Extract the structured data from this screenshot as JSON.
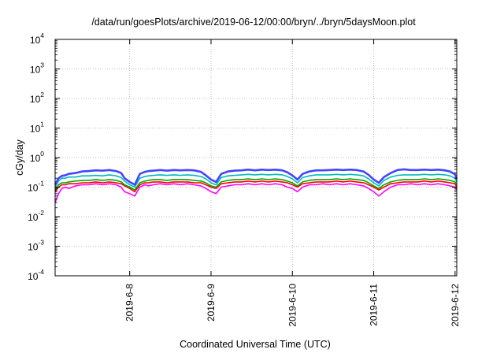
{
  "chart_data": {
    "type": "line",
    "title": "/data/run/goesPlots/archive/2019-06-12/00:00/bryn/../bryn/5daysMoon.plot",
    "xlabel": "Coordinated Universal Time (UTC)",
    "ylabel": "cGy/day",
    "yscale": "log",
    "ylim": [
      0.0001,
      10000
    ],
    "xlim": [
      "2019-06-07T02:00",
      "2019-06-12T00:30"
    ],
    "grid": true,
    "legend": "none",
    "y_ticks": [
      {
        "base": "10",
        "exp": "-4"
      },
      {
        "base": "10",
        "exp": "-3"
      },
      {
        "base": "10",
        "exp": "-2"
      },
      {
        "base": "10",
        "exp": "-1"
      },
      {
        "base": "10",
        "exp": "0"
      },
      {
        "base": "10",
        "exp": "1"
      },
      {
        "base": "10",
        "exp": "2"
      },
      {
        "base": "10",
        "exp": "3"
      },
      {
        "base": "10",
        "exp": "4"
      }
    ],
    "x_ticks": [
      {
        "label": "2019-6-8",
        "value": "2019-06-08T00:00"
      },
      {
        "label": "2019-6-9",
        "value": "2019-06-09T00:00"
      },
      {
        "label": "2019-6-10",
        "value": "2019-06-10T00:00"
      },
      {
        "label": "2019-6-11",
        "value": "2019-06-11T00:00"
      },
      {
        "label": "2019-6-12",
        "value": "2019-06-12T00:00"
      }
    ],
    "x": [
      "2019-06-07T02:00",
      "2019-06-07T03:00",
      "2019-06-07T04:00",
      "2019-06-07T05:00",
      "2019-06-07T06:00",
      "2019-06-07T08:00",
      "2019-06-07T10:00",
      "2019-06-07T12:00",
      "2019-06-07T14:00",
      "2019-06-07T16:00",
      "2019-06-07T18:00",
      "2019-06-07T20:00",
      "2019-06-07T21:30",
      "2019-06-07T22:30",
      "2019-06-08T00:00",
      "2019-06-08T01:30",
      "2019-06-08T03:00",
      "2019-06-08T04:30",
      "2019-06-08T05:30",
      "2019-06-08T07:00",
      "2019-06-08T09:00",
      "2019-06-08T11:00",
      "2019-06-08T13:00",
      "2019-06-08T15:00",
      "2019-06-08T17:00",
      "2019-06-08T19:00",
      "2019-06-08T21:00",
      "2019-06-08T22:30",
      "2019-06-09T00:00",
      "2019-06-09T01:30",
      "2019-06-09T03:00",
      "2019-06-09T05:00",
      "2019-06-09T07:00",
      "2019-06-09T09:00",
      "2019-06-09T11:00",
      "2019-06-09T13:00",
      "2019-06-09T15:00",
      "2019-06-09T17:00",
      "2019-06-09T19:00",
      "2019-06-09T21:00",
      "2019-06-09T22:30",
      "2019-06-10T00:00",
      "2019-06-10T01:30",
      "2019-06-10T03:00",
      "2019-06-10T05:00",
      "2019-06-10T07:00",
      "2019-06-10T09:00",
      "2019-06-10T11:00",
      "2019-06-10T13:00",
      "2019-06-10T15:00",
      "2019-06-10T17:00",
      "2019-06-10T19:00",
      "2019-06-10T21:00",
      "2019-06-10T22:30",
      "2019-06-11T00:00",
      "2019-06-11T01:30",
      "2019-06-11T03:00",
      "2019-06-11T05:00",
      "2019-06-11T07:00",
      "2019-06-11T09:00",
      "2019-06-11T11:00",
      "2019-06-11T13:00",
      "2019-06-11T15:00",
      "2019-06-11T17:00",
      "2019-06-11T19:00",
      "2019-06-11T21:00",
      "2019-06-11T22:30",
      "2019-06-12T00:00",
      "2019-06-12T00:30"
    ],
    "series": [
      {
        "color": "#ff00ff",
        "values": [
          0.03,
          0.06,
          0.09,
          0.1,
          0.09,
          0.11,
          0.12,
          0.12,
          0.13,
          0.12,
          0.13,
          0.12,
          0.1,
          0.07,
          0.06,
          0.05,
          0.1,
          0.12,
          0.11,
          0.12,
          0.13,
          0.12,
          0.13,
          0.12,
          0.13,
          0.12,
          0.11,
          0.09,
          0.07,
          0.06,
          0.1,
          0.11,
          0.12,
          0.12,
          0.13,
          0.12,
          0.13,
          0.12,
          0.13,
          0.12,
          0.1,
          0.09,
          0.07,
          0.1,
          0.12,
          0.12,
          0.13,
          0.12,
          0.13,
          0.12,
          0.13,
          0.12,
          0.11,
          0.09,
          0.07,
          0.05,
          0.07,
          0.1,
          0.12,
          0.12,
          0.13,
          0.12,
          0.13,
          0.12,
          0.13,
          0.12,
          0.11,
          0.1,
          0.08
        ]
      },
      {
        "color": "#ff0000",
        "values": [
          0.07,
          0.1,
          0.12,
          0.12,
          0.13,
          0.13,
          0.14,
          0.14,
          0.15,
          0.14,
          0.15,
          0.14,
          0.13,
          0.11,
          0.09,
          0.07,
          0.12,
          0.14,
          0.14,
          0.15,
          0.15,
          0.14,
          0.15,
          0.15,
          0.15,
          0.14,
          0.14,
          0.12,
          0.1,
          0.09,
          0.13,
          0.14,
          0.15,
          0.15,
          0.16,
          0.15,
          0.16,
          0.15,
          0.16,
          0.15,
          0.14,
          0.12,
          0.1,
          0.13,
          0.14,
          0.15,
          0.15,
          0.15,
          0.16,
          0.15,
          0.16,
          0.15,
          0.14,
          0.12,
          0.1,
          0.08,
          0.1,
          0.13,
          0.14,
          0.15,
          0.15,
          0.15,
          0.16,
          0.15,
          0.16,
          0.15,
          0.14,
          0.13,
          0.1
        ]
      },
      {
        "color": "#00aa00",
        "values": [
          0.08,
          0.12,
          0.14,
          0.14,
          0.15,
          0.16,
          0.17,
          0.17,
          0.18,
          0.17,
          0.18,
          0.17,
          0.15,
          0.12,
          0.1,
          0.08,
          0.14,
          0.16,
          0.17,
          0.18,
          0.18,
          0.17,
          0.18,
          0.18,
          0.18,
          0.17,
          0.16,
          0.14,
          0.11,
          0.1,
          0.15,
          0.17,
          0.18,
          0.18,
          0.19,
          0.18,
          0.19,
          0.18,
          0.19,
          0.18,
          0.16,
          0.14,
          0.11,
          0.15,
          0.17,
          0.18,
          0.18,
          0.18,
          0.19,
          0.18,
          0.19,
          0.18,
          0.17,
          0.14,
          0.11,
          0.09,
          0.12,
          0.15,
          0.17,
          0.18,
          0.18,
          0.18,
          0.19,
          0.18,
          0.19,
          0.18,
          0.17,
          0.15,
          0.12
        ]
      },
      {
        "color": "#00bbbb",
        "values": [
          0.1,
          0.16,
          0.2,
          0.2,
          0.22,
          0.22,
          0.24,
          0.24,
          0.25,
          0.24,
          0.26,
          0.24,
          0.21,
          0.16,
          0.12,
          0.1,
          0.2,
          0.23,
          0.24,
          0.25,
          0.26,
          0.25,
          0.26,
          0.25,
          0.26,
          0.25,
          0.23,
          0.19,
          0.14,
          0.12,
          0.21,
          0.24,
          0.25,
          0.26,
          0.27,
          0.26,
          0.27,
          0.26,
          0.27,
          0.26,
          0.23,
          0.19,
          0.14,
          0.21,
          0.24,
          0.26,
          0.26,
          0.26,
          0.27,
          0.26,
          0.27,
          0.26,
          0.24,
          0.19,
          0.14,
          0.11,
          0.17,
          0.22,
          0.25,
          0.26,
          0.26,
          0.26,
          0.27,
          0.26,
          0.27,
          0.26,
          0.24,
          0.2,
          0.15
        ]
      },
      {
        "color": "#4444ff",
        "values": [
          0.12,
          0.2,
          0.24,
          0.25,
          0.28,
          0.3,
          0.34,
          0.35,
          0.37,
          0.36,
          0.38,
          0.35,
          0.3,
          0.2,
          0.15,
          0.12,
          0.28,
          0.33,
          0.35,
          0.36,
          0.38,
          0.36,
          0.38,
          0.37,
          0.38,
          0.37,
          0.33,
          0.25,
          0.18,
          0.15,
          0.28,
          0.34,
          0.36,
          0.37,
          0.39,
          0.37,
          0.39,
          0.38,
          0.39,
          0.37,
          0.32,
          0.25,
          0.18,
          0.28,
          0.34,
          0.37,
          0.37,
          0.38,
          0.39,
          0.38,
          0.39,
          0.38,
          0.34,
          0.26,
          0.18,
          0.14,
          0.22,
          0.3,
          0.38,
          0.4,
          0.38,
          0.38,
          0.39,
          0.38,
          0.39,
          0.37,
          0.34,
          0.27,
          0.19
        ]
      }
    ]
  }
}
